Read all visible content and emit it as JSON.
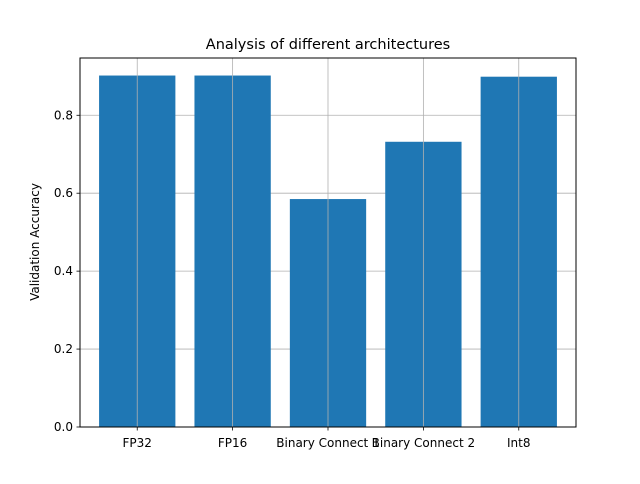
{
  "chart_data": {
    "type": "bar",
    "title": "Analysis of different architectures",
    "xlabel": "",
    "ylabel": "Validation Accuracy",
    "categories": [
      "FP32",
      "FP16",
      "Binary Connect 1",
      "Binary Connect 2",
      "Int8"
    ],
    "values": [
      0.902,
      0.902,
      0.585,
      0.732,
      0.899
    ],
    "ylim": [
      0,
      0.947
    ],
    "yticks": [
      "0.0",
      "0.2",
      "0.4",
      "0.6",
      "0.8"
    ],
    "grid": true,
    "bar_color": "#1f77b4",
    "grid_color": "#b0b0b0"
  }
}
